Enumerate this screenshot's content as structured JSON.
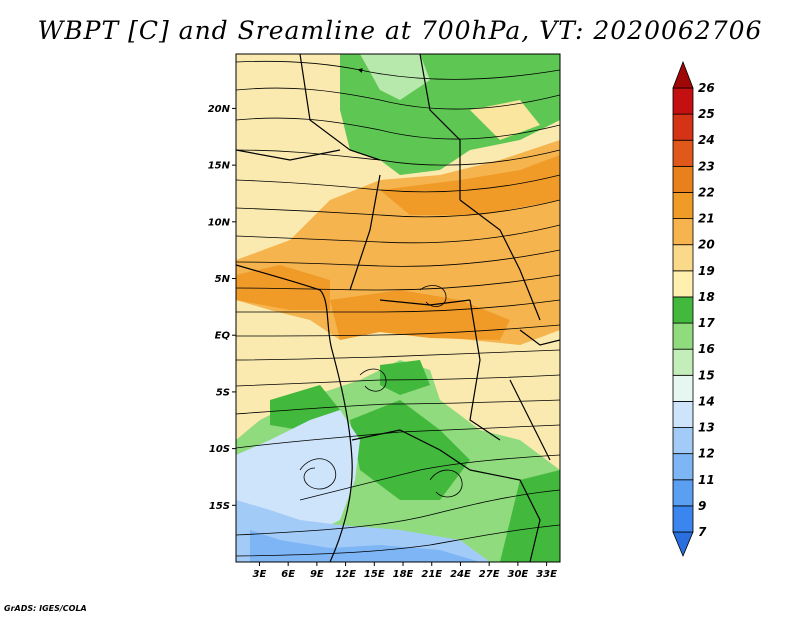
{
  "title": "WBPT [C] and Sreamline at 700hPa, VT: 2020062706",
  "credit": "GrADS: IGES/COLA",
  "map": {
    "variable": "WBPT [C]",
    "overlay": "Streamline",
    "level": "700hPa",
    "valid_time": "2020062706",
    "lat_labels": [
      "20N",
      "15N",
      "10N",
      "5N",
      "EQ",
      "5S",
      "10S",
      "15S"
    ],
    "lat_values": [
      20,
      15,
      10,
      5,
      0,
      -5,
      -10,
      -15
    ],
    "lon_labels": [
      "3E",
      "6E",
      "9E",
      "12E",
      "15E",
      "18E",
      "21E",
      "24E",
      "27E",
      "30E",
      "33E"
    ],
    "lon_values": [
      3,
      6,
      9,
      12,
      15,
      18,
      21,
      24,
      27,
      30,
      33
    ]
  },
  "colorbar": {
    "labels": [
      "7",
      "9",
      "11",
      "12",
      "13",
      "14",
      "15",
      "16",
      "17",
      "18",
      "19",
      "20",
      "21",
      "22",
      "23",
      "24",
      "25",
      "26"
    ],
    "colors": [
      "#2a6fe0",
      "#3a85ee",
      "#5b9ff2",
      "#7db5f5",
      "#a3cbf7",
      "#cde4fa",
      "#e6f6f0",
      "#c4eeb9",
      "#8fdb7d",
      "#42b83c",
      "#fff0b0",
      "#fbd98a",
      "#f5b44e",
      "#f09a28",
      "#e8801c",
      "#e0581a",
      "#d43316",
      "#c41010",
      "#a00808"
    ]
  }
}
